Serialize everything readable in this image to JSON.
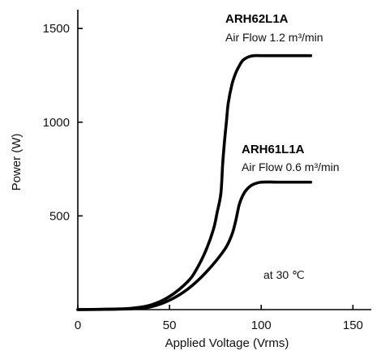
{
  "chart_data": {
    "type": "line",
    "xlabel": "Applied Voltage (Vrms)",
    "ylabel": "Power (W)",
    "xlim": [
      0,
      160
    ],
    "ylim": [
      0,
      1600
    ],
    "xticks": [
      0,
      50,
      100,
      150
    ],
    "yticks": [
      500,
      1000,
      1500
    ],
    "grid": false,
    "annotations": {
      "condition": "at 30 ℃"
    },
    "series": [
      {
        "name": "ARH62L1A",
        "subtitle": "Air Flow 1.2 m³/min",
        "x": [
          0,
          20,
          30,
          40,
          50,
          60,
          65,
          70,
          74,
          76,
          78,
          79,
          80,
          81,
          82,
          84,
          86,
          88,
          90,
          93,
          96,
          100,
          110,
          127
        ],
        "y": [
          0,
          3,
          8,
          25,
          70,
          150,
          220,
          320,
          430,
          520,
          620,
          780,
          900,
          1000,
          1100,
          1200,
          1260,
          1300,
          1330,
          1348,
          1355,
          1355,
          1355,
          1355
        ]
      },
      {
        "name": "ARH61L1A",
        "subtitle": "Air Flow 0.6 m³/min",
        "x": [
          0,
          20,
          30,
          40,
          50,
          60,
          70,
          80,
          84,
          86,
          88,
          90,
          92,
          95,
          100,
          110,
          127
        ],
        "y": [
          0,
          2,
          5,
          15,
          50,
          110,
          200,
          320,
          400,
          470,
          560,
          610,
          640,
          665,
          680,
          680,
          680
        ]
      }
    ]
  }
}
